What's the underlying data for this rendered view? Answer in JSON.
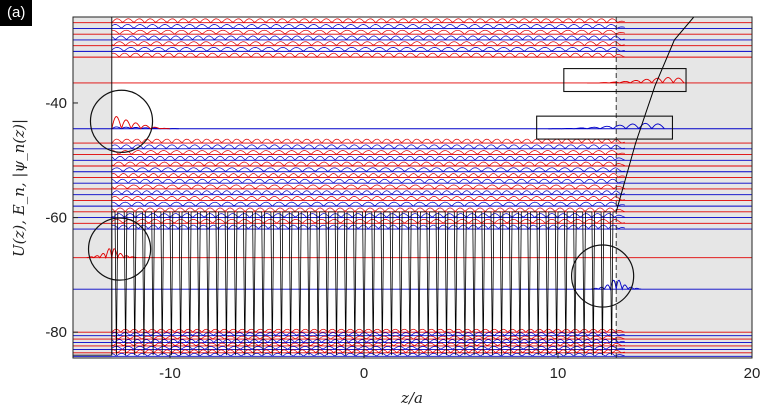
{
  "panel_label": "(a)",
  "chart_data": {
    "type": "line",
    "xlabel": "z/a",
    "ylabel": "U(z),  E_n,  |ψ_n(z)|",
    "xlim": [
      -15,
      20
    ],
    "ylim": [
      -84.5,
      -25
    ],
    "x_ticks": [
      -10,
      0,
      10,
      20
    ],
    "x_tick_labels": [
      "-10",
      "0",
      "10",
      "20"
    ],
    "y_ticks": [
      -80,
      -60,
      -40
    ],
    "y_tick_labels": [
      "-80",
      "-60",
      "-40"
    ],
    "grid": false,
    "background_regions": [
      [
        -15,
        -13
      ],
      [
        13,
        20
      ]
    ],
    "potential": {
      "name": "U(z)",
      "color": "#000000",
      "wells": 55,
      "well_range": [
        -13,
        13
      ],
      "barrier_top": -59,
      "well_bottom": -84,
      "continuum_edge_x": 13,
      "exit_curve": {
        "x": [
          13,
          14,
          15,
          16,
          17
        ],
        "y": [
          -59,
          -47,
          -37,
          -29,
          -25
        ]
      }
    },
    "dashed_line_x": 13,
    "energy_levels": {
      "colors": [
        "#e00000",
        "#0000c8"
      ],
      "upper_band": [
        -26,
        -27,
        -28,
        -29,
        -30,
        -31,
        -32
      ],
      "gap_states": [
        {
          "E": -36.5,
          "color": "#e00000"
        },
        {
          "E": -44.5,
          "color": "#0000c8"
        }
      ],
      "middle_band": [
        -47,
        -48,
        -49,
        -50,
        -51,
        -52,
        -53,
        -54,
        -55,
        -56,
        -57,
        -58,
        -59,
        -60,
        -61,
        -62
      ],
      "surface_states": [
        {
          "E": -67,
          "color": "#e00000"
        },
        {
          "E": -72.5,
          "color": "#0000c8"
        }
      ],
      "lower_band": [
        -80,
        -80.6,
        -81.2,
        -81.8,
        -82.4,
        -83,
        -83.6,
        -84.2
      ]
    },
    "annotations": [
      {
        "shape": "rectangle",
        "x": [
          10.3,
          16.6
        ],
        "y": [
          -34,
          -38
        ]
      },
      {
        "shape": "rectangle",
        "x": [
          8.9,
          15.9
        ],
        "y": [
          -42.3,
          -46.3
        ]
      },
      {
        "shape": "circle",
        "cx": -12.5,
        "cy": -43.2,
        "r": 2.0
      },
      {
        "shape": "circle",
        "cx": -12.6,
        "cy": -65.5,
        "r": 2.0
      },
      {
        "shape": "circle",
        "cx": 12.3,
        "cy": -70.2,
        "r": 2.0
      }
    ]
  }
}
